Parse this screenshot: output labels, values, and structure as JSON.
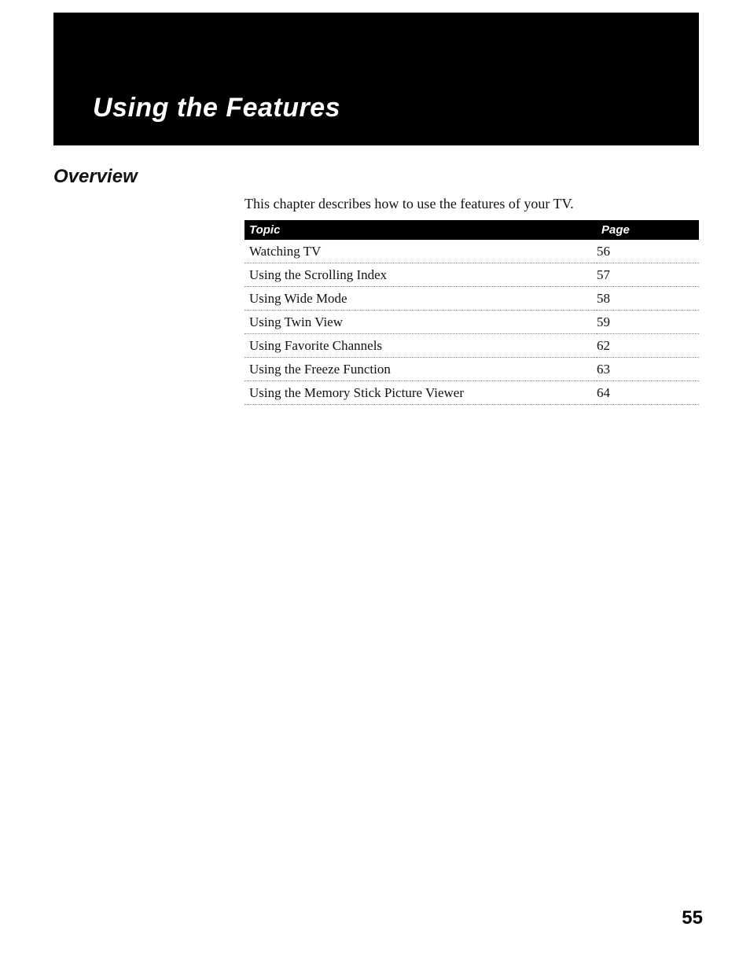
{
  "header": {
    "title": "Using the Features",
    "bg_color": "#000000",
    "text_color": "#ffffff",
    "title_fontsize": 34
  },
  "section": {
    "title": "Overview",
    "title_fontsize": 24
  },
  "intro": "This chapter describes how to use the features of your TV.",
  "toc": {
    "header_bg": "#000000",
    "header_text_color": "#ffffff",
    "columns": {
      "topic": "Topic",
      "page": "Page"
    },
    "row_border_color": "#888888",
    "body_fontsize": 17,
    "rows": [
      {
        "topic": "Watching TV",
        "page": "56"
      },
      {
        "topic": "Using the Scrolling Index",
        "page": "57"
      },
      {
        "topic": "Using Wide Mode",
        "page": "58"
      },
      {
        "topic": "Using Twin View",
        "page": "59"
      },
      {
        "topic": "Using Favorite Channels",
        "page": "62"
      },
      {
        "topic": "Using the Freeze Function",
        "page": "63"
      },
      {
        "topic": "Using the Memory Stick Picture Viewer",
        "page": "64"
      }
    ]
  },
  "page_number": "55",
  "page_bg": "#ffffff"
}
